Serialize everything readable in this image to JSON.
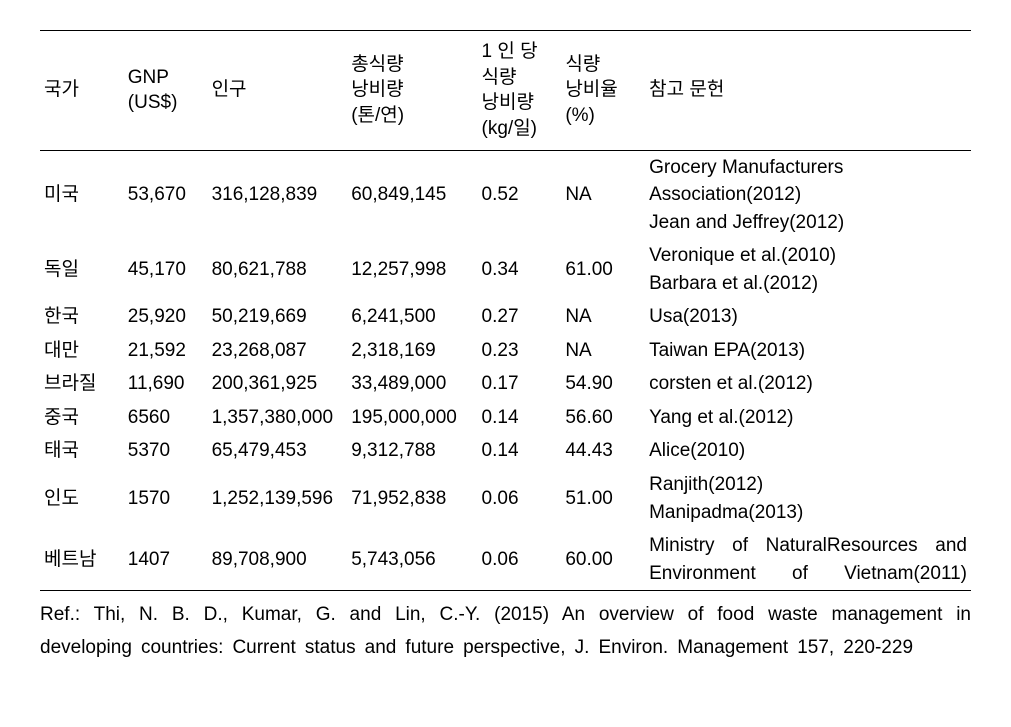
{
  "table": {
    "columns": [
      "국가",
      "GNP\n(US$)",
      "인구",
      "총식량\n낭비량\n(톤/연)",
      "1 인 당\n식량\n낭비량\n(kg/일)",
      "식량\n낭비율\n(%)",
      "참고 문헌"
    ],
    "rows": [
      {
        "country": "미국",
        "gnp": "53,670",
        "pop": "316,128,839",
        "total_waste": "60,849,145",
        "per_capita": "0.52",
        "waste_rate": "NA",
        "refs": [
          "Grocery Manufacturers Association(2012)",
          "Jean and Jeffrey(2012)"
        ],
        "ref_justify": false
      },
      {
        "country": "독일",
        "gnp": "45,170",
        "pop": "80,621,788",
        "total_waste": "12,257,998",
        "per_capita": "0.34",
        "waste_rate": "61.00",
        "refs": [
          "Veronique et al.(2010)",
          "Barbara et al.(2012)"
        ],
        "ref_justify": false
      },
      {
        "country": "한국",
        "gnp": "25,920",
        "pop": "50,219,669",
        "total_waste": "6,241,500",
        "per_capita": "0.27",
        "waste_rate": "NA",
        "refs": [
          "Usa(2013)"
        ],
        "ref_justify": false
      },
      {
        "country": "대만",
        "gnp": "21,592",
        "pop": "23,268,087",
        "total_waste": "2,318,169",
        "per_capita": "0.23",
        "waste_rate": "NA",
        "refs": [
          "Taiwan EPA(2013)"
        ],
        "ref_justify": false
      },
      {
        "country": "브라질",
        "gnp": "11,690",
        "pop": "200,361,925",
        "total_waste": "33,489,000",
        "per_capita": "0.17",
        "waste_rate": "54.90",
        "refs": [
          "corsten et al.(2012)"
        ],
        "ref_justify": false
      },
      {
        "country": "중국",
        "gnp": "6560",
        "pop": "1,357,380,000",
        "total_waste": "195,000,000",
        "per_capita": "0.14",
        "waste_rate": "56.60",
        "refs": [
          "Yang et al.(2012)"
        ],
        "ref_justify": false
      },
      {
        "country": "태국",
        "gnp": "5370",
        "pop": "65,479,453",
        "total_waste": "9,312,788",
        "per_capita": "0.14",
        "waste_rate": "44.43",
        "refs": [
          "Alice(2010)"
        ],
        "ref_justify": false
      },
      {
        "country": "인도",
        "gnp": "1570",
        "pop": "1,252,139,596",
        "total_waste": "71,952,838",
        "per_capita": "0.06",
        "waste_rate": "51.00",
        "refs": [
          "Ranjith(2012)",
          "Manipadma(2013)"
        ],
        "ref_justify": false
      },
      {
        "country": "베트남",
        "gnp": "1407",
        "pop": "89,708,900",
        "total_waste": "5,743,056",
        "per_capita": "0.06",
        "waste_rate": "60.00",
        "refs": [
          "Ministry of NaturalResources and Environment of Vietnam(2011)"
        ],
        "ref_justify": true
      }
    ]
  },
  "footer_text": "Ref.: Thi, N. B. D., Kumar, G. and Lin, C.-Y. (2015) An overview of food waste management in developing countries: Current status and future perspective, J. Environ. Management 157,  220-229"
}
